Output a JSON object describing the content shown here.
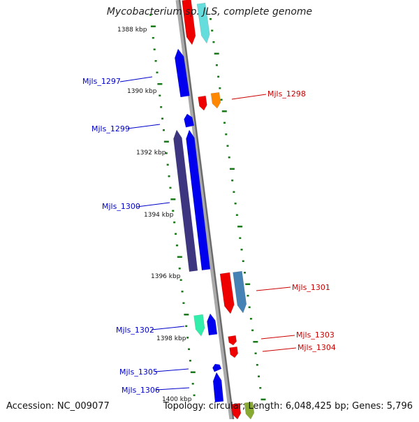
{
  "title": "Mycobacterium sp. JLS, complete genome",
  "footer": {
    "accession": "Accession: NC_009077",
    "summary": "Topology: circular; Length: 6,048,425 bp; Genes: 5,796"
  },
  "scale_labels": [
    "1388 kbp",
    "1390 kbp",
    "1392 kbp",
    "1394 kbp",
    "1396 kbp",
    "1398 kbp",
    "1400 kbp"
  ],
  "colors": {
    "backbone": "#888888",
    "tick": "#1a7a1a",
    "forward_label": "#0000cc",
    "reverse_label": "#cc0000",
    "blue": "#0000ee",
    "dark_blue": "#3d3580",
    "red": "#ee0000",
    "orange": "#ff8800",
    "cyan": "#66dddd",
    "steel": "#4682b4",
    "teal": "#33eeaa",
    "olive": "#88aa33"
  },
  "gene_labels": {
    "left": [
      "Mjls_1297",
      "Mjls_1299",
      "Mjls_1300",
      "Mjls_1302",
      "Mjls_1305",
      "Mjls_1306"
    ],
    "right": [
      "Mjls_1298",
      "Mjls_1301",
      "Mjls_1303",
      "Mjls_1304"
    ]
  }
}
